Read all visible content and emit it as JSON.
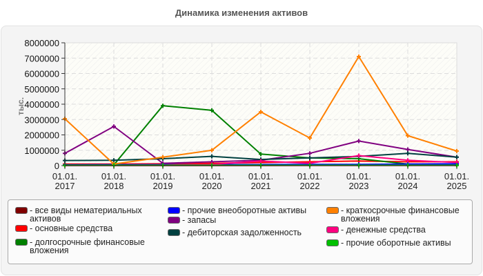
{
  "chart_data": {
    "type": "line",
    "title": "Динамика изменения активов",
    "xlabel": "",
    "ylabel": "тыс.",
    "ylim": [
      0,
      8000000
    ],
    "yticks": [
      "0",
      "1000000",
      "2000000",
      "3000000",
      "4000000",
      "5000000",
      "6000000",
      "7000000",
      "8000000"
    ],
    "categories": [
      "01.01. 2017",
      "01.01. 2018",
      "01.01. 2019",
      "01.01. 2020",
      "01.01. 2021",
      "01.01. 2022",
      "01.01. 2023",
      "01.01. 2024",
      "01.01. 2025"
    ],
    "grid": true,
    "legend_position": "bottom",
    "series": [
      {
        "name": "все виды нематериальных активов",
        "color": "#800000",
        "values": [
          5000,
          5000,
          5000,
          5000,
          5000,
          10000,
          10000,
          10000,
          10000
        ]
      },
      {
        "name": "основные средства",
        "color": "#ff0000",
        "values": [
          100000,
          100000,
          120000,
          150000,
          200000,
          250000,
          300000,
          250000,
          250000
        ]
      },
      {
        "name": "долгосрочные финансовые вложения",
        "color": "#008000",
        "values": [
          30000,
          50000,
          3900000,
          3600000,
          750000,
          500000,
          450000,
          100000,
          50000
        ]
      },
      {
        "name": "прочие внеоборотные активы",
        "color": "#0000ff",
        "values": [
          50000,
          60000,
          60000,
          70000,
          70000,
          80000,
          80000,
          100000,
          120000
        ]
      },
      {
        "name": "запасы",
        "color": "#800080",
        "values": [
          800000,
          2550000,
          150000,
          250000,
          350000,
          800000,
          1600000,
          1050000,
          550000
        ]
      },
      {
        "name": "дебиторская задолженность",
        "color": "#004040",
        "values": [
          330000,
          350000,
          450000,
          600000,
          400000,
          500000,
          600000,
          800000,
          550000
        ]
      },
      {
        "name": "краткосрочные финансовые вложения",
        "color": "#ff8000",
        "values": [
          3050000,
          100000,
          550000,
          1000000,
          3500000,
          1800000,
          7100000,
          1950000,
          950000
        ]
      },
      {
        "name": "денежные средства",
        "color": "#ff0080",
        "values": [
          20000,
          20000,
          30000,
          80000,
          300000,
          150000,
          650000,
          350000,
          200000
        ]
      },
      {
        "name": "прочие оборотные активы",
        "color": "#00c000",
        "values": [
          20000,
          20000,
          20000,
          20000,
          20000,
          20000,
          20000,
          20000,
          20000
        ]
      }
    ]
  },
  "legend": {
    "items": [
      {
        "label": "- все виды нематериальных активов",
        "color": "#800000"
      },
      {
        "label": "- основные средства",
        "color": "#ff0000"
      },
      {
        "label": "- долгосрочные финансовые вложения",
        "color": "#008000"
      },
      {
        "label": "- прочие внеоборотные активы",
        "color": "#0000ff"
      },
      {
        "label": "- запасы",
        "color": "#800080"
      },
      {
        "label": "- дебиторская задолженность",
        "color": "#004040"
      },
      {
        "label": "- краткосрочные финансовые вложения",
        "color": "#ff8000"
      },
      {
        "label": "- денежные средства",
        "color": "#ff0080"
      },
      {
        "label": "- прочие оборотные активы",
        "color": "#00c000"
      }
    ]
  }
}
